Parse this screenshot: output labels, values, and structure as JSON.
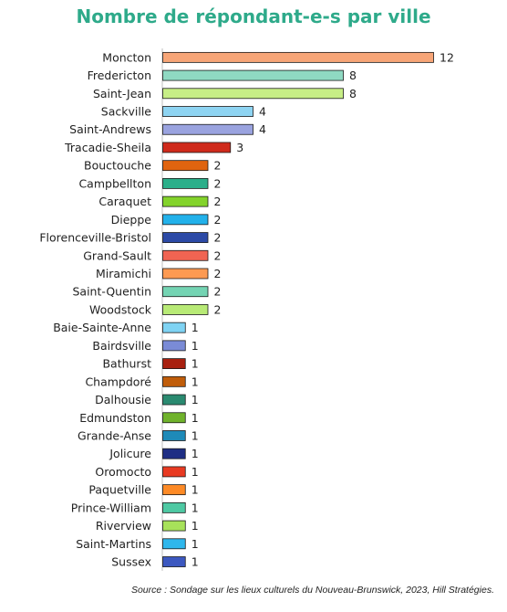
{
  "chart_data": {
    "type": "bar",
    "orientation": "horizontal",
    "title": "Nombre de répondant-e-s par ville",
    "categories": [
      "Moncton",
      "Fredericton",
      "Saint-Jean",
      "Sackville",
      "Saint-Andrews",
      "Tracadie-Sheila",
      "Bouctouche",
      "Campbellton",
      "Caraquet",
      "Dieppe",
      "Florenceville-Bristol",
      "Grand-Sault",
      "Miramichi",
      "Saint-Quentin",
      "Woodstock",
      "Baie-Sainte-Anne",
      "Bairdsville",
      "Bathurst",
      "Champdoré",
      "Dalhousie",
      "Edmundston",
      "Grande-Anse",
      "Jolicure",
      "Oromocto",
      "Paquetville",
      "Prince-William",
      "Riverview",
      "Saint-Martins",
      "Sussex"
    ],
    "values": [
      12,
      8,
      8,
      4,
      4,
      3,
      2,
      2,
      2,
      2,
      2,
      2,
      2,
      2,
      2,
      1,
      1,
      1,
      1,
      1,
      1,
      1,
      1,
      1,
      1,
      1,
      1,
      1,
      1
    ],
    "colors": [
      "#f7a577",
      "#8fd9c2",
      "#c7ee86",
      "#8ed4f2",
      "#9aa3df",
      "#cf2a1b",
      "#e0640f",
      "#2baf8a",
      "#83d32b",
      "#22b1ea",
      "#2c4aa6",
      "#f06452",
      "#fd9a52",
      "#74d4b3",
      "#b8ea76",
      "#7fd3f3",
      "#7a8bd6",
      "#a8200f",
      "#c05d0a",
      "#2a8a70",
      "#6fb22b",
      "#1e8ab8",
      "#1e2e84",
      "#e83a22",
      "#fd8a26",
      "#4ec9a3",
      "#a7e25a",
      "#2fb7ec",
      "#3c58c0"
    ],
    "xlim": [
      0,
      12
    ],
    "grid": false,
    "legend": "none",
    "data_labels": true
  },
  "source": "Source : Sondage sur les lieux culturels du Nouveau-Brunswick, 2023, Hill Stratégies."
}
